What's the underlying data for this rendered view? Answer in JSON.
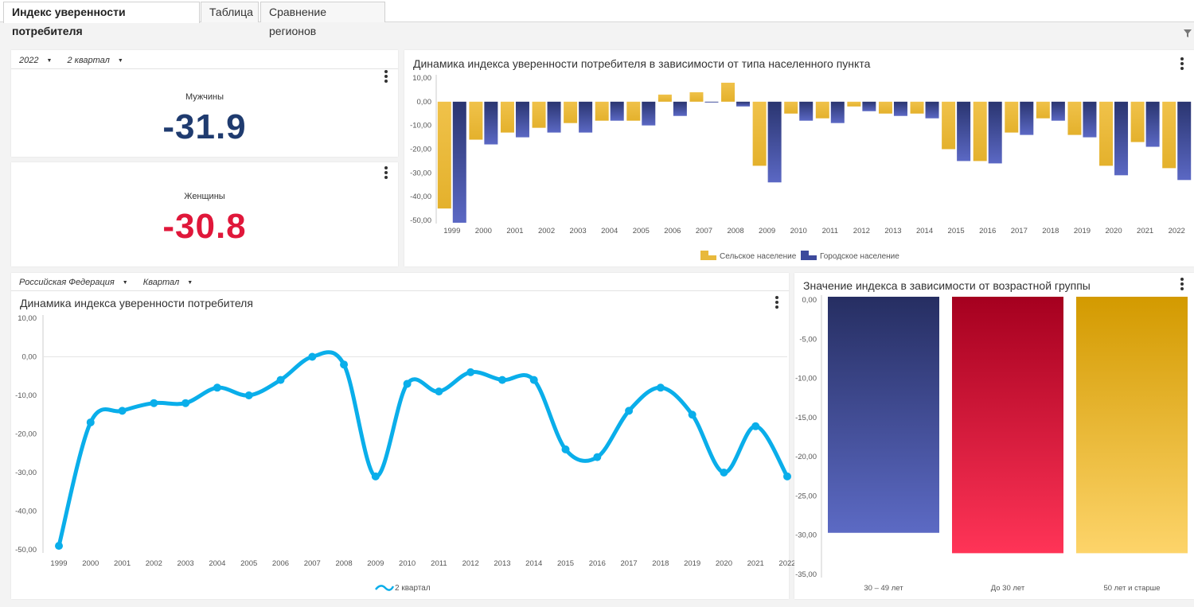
{
  "tabs": [
    {
      "label": "Индекс уверенности потребителя",
      "active": true
    },
    {
      "label": "Таблица",
      "active": false
    },
    {
      "label": "Сравнение регионов",
      "active": false
    }
  ],
  "kpi_selectors": {
    "year": "2022",
    "quarter": "2 квартал"
  },
  "kpi_men": {
    "label": "Мужчины",
    "value": "-31.9",
    "color": "#1f3b6f"
  },
  "kpi_women": {
    "label": "Женщины",
    "value": "-30.8",
    "color": "#e0173a"
  },
  "line_selectors": {
    "region": "Российская Федерация",
    "period": "Квартал"
  },
  "colors": {
    "rural": "#e8b93c",
    "urban": "#3d4a9c",
    "line": "#0aaeea",
    "age1": "#3a4790",
    "age2": "#d81c3c",
    "age3": "#e6a81f"
  },
  "chart_data": [
    {
      "type": "bar",
      "title": "Динамика индекса уверенности потребителя в зависимости от типа населенного пункта",
      "categories": [
        "1999",
        "2000",
        "2001",
        "2002",
        "2003",
        "2004",
        "2005",
        "2006",
        "2007",
        "2008",
        "2009",
        "2010",
        "2011",
        "2012",
        "2013",
        "2014",
        "2015",
        "2016",
        "2017",
        "2018",
        "2019",
        "2020",
        "2021",
        "2022"
      ],
      "y_ticks": [
        "10,00",
        "0,00",
        "-10,00",
        "-20,00",
        "-30,00",
        "-40,00",
        "-50,00"
      ],
      "ylim": [
        -50,
        10
      ],
      "legend_placement": "bottom",
      "series": [
        {
          "name": "Сельское население",
          "values": [
            -45,
            -16,
            -13,
            -11,
            -9,
            -8,
            -8,
            3,
            4,
            8,
            -27,
            -5,
            -7,
            -2,
            -5,
            -5,
            -20,
            -25,
            -13,
            -7,
            -14,
            -27,
            -17,
            -28
          ]
        },
        {
          "name": "Городское население",
          "values": [
            -51,
            -18,
            -15,
            -13,
            -13,
            -8,
            -10,
            -6,
            0,
            -2,
            -34,
            -8,
            -9,
            -4,
            -6,
            -7,
            -25,
            -26,
            -14,
            -8,
            -15,
            -31,
            -19,
            -33
          ]
        }
      ]
    },
    {
      "type": "line",
      "title": "Динамика индекса уверенности потребителя",
      "x": [
        "1999",
        "2000",
        "2001",
        "2002",
        "2003",
        "2004",
        "2005",
        "2006",
        "2007",
        "2008",
        "2009",
        "2010",
        "2011",
        "2012",
        "2013",
        "2014",
        "2015",
        "2016",
        "2017",
        "2018",
        "2019",
        "2020",
        "2021",
        "2022"
      ],
      "y_ticks": [
        "10,00",
        "0,00",
        "-10,00",
        "-20,00",
        "-30,00",
        "-40,00",
        "-50,00"
      ],
      "ylim": [
        -50,
        10
      ],
      "legend_placement": "bottom",
      "series": [
        {
          "name": "2 квартал",
          "values": [
            -49,
            -17,
            -14,
            -12,
            -12,
            -8,
            -10,
            -6,
            0,
            -2,
            -31,
            -7,
            -9,
            -4,
            -6,
            -6,
            -24,
            -26,
            -14,
            -8,
            -15,
            -30,
            -18,
            -31
          ]
        }
      ]
    },
    {
      "type": "bar",
      "title": "Значение индекса в зависимости от возрастной группы",
      "categories": [
        "30 – 49 лет",
        "До 30 лет",
        "50 лет и старше"
      ],
      "values": [
        -29.7,
        -32.3,
        -32.3
      ],
      "y_ticks": [
        "0,00",
        "-5,00",
        "-10,00",
        "-15,00",
        "-20,00",
        "-25,00",
        "-30,00",
        "-35,00"
      ],
      "ylim": [
        -35,
        0
      ]
    }
  ]
}
